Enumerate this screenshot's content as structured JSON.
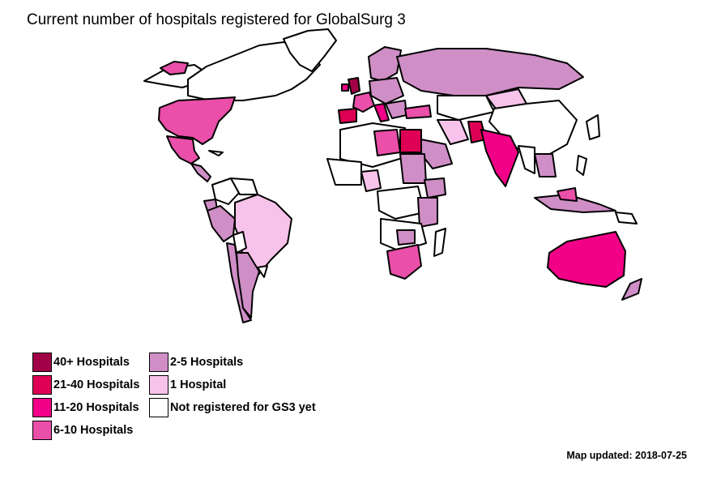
{
  "title": "Current number of hospitals registered for GlobalSurg 3",
  "colors": {
    "c40": "#a20046",
    "c21": "#de0055",
    "c11": "#f20087",
    "c6": "#ea4fa9",
    "c2": "#cf8ec6",
    "c1": "#f8c3ea",
    "c0": "#ffffff",
    "border": "#000000"
  },
  "legend": [
    {
      "label": "40+ Hospitals",
      "color": "#a20046"
    },
    {
      "label": "21-40 Hospitals",
      "color": "#de0055"
    },
    {
      "label": "11-20 Hospitals",
      "color": "#f20087"
    },
    {
      "label": "6-10 Hospitals",
      "color": "#ea4fa9"
    },
    {
      "label": "2-5 Hospitals",
      "color": "#cf8ec6"
    },
    {
      "label": "1 Hospital",
      "color": "#f8c3ea"
    },
    {
      "label": "Not registered for GS3 yet",
      "color": "#ffffff"
    }
  ],
  "updated": "Map updated: 2018-07-25"
}
